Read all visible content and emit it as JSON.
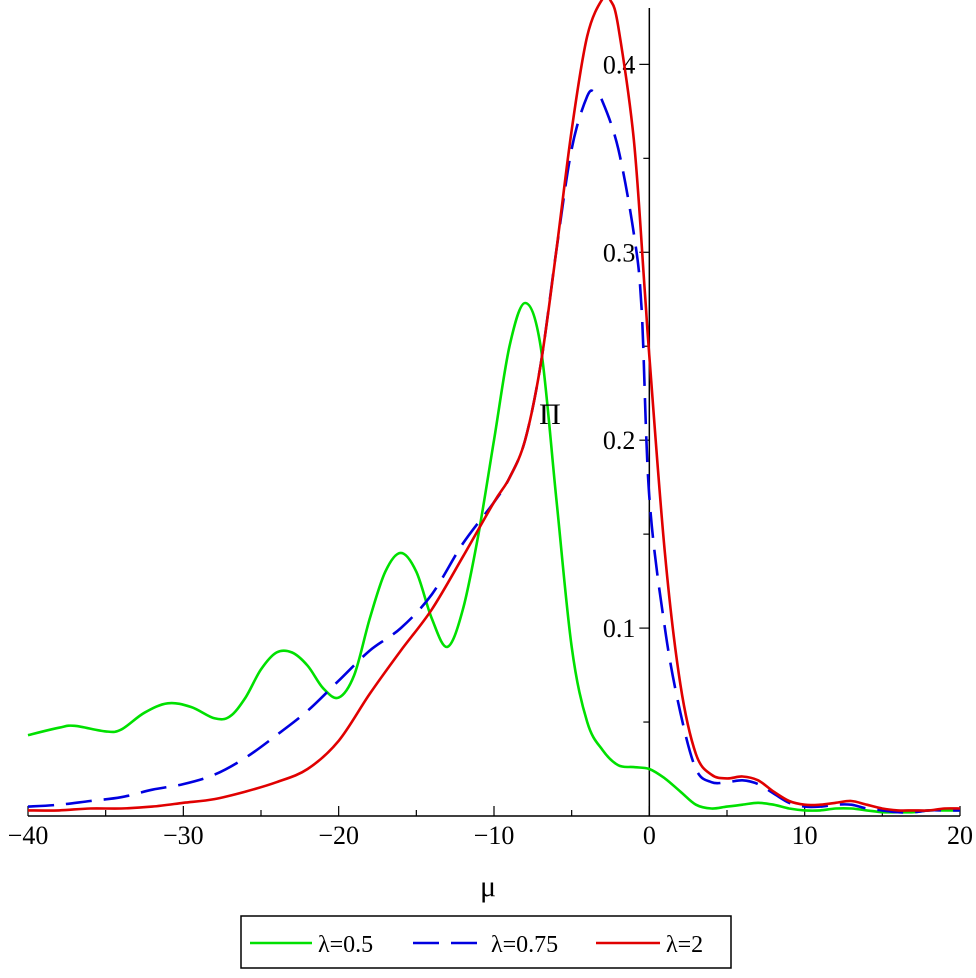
{
  "chart_data": {
    "type": "line",
    "title": "",
    "xlabel": "μ",
    "ylabel": "Π",
    "xlim": [
      -40,
      20
    ],
    "ylim": [
      0,
      0.43
    ],
    "xticks": [
      -40,
      -30,
      -20,
      -10,
      0,
      10,
      20
    ],
    "xtick_labels": [
      "−40",
      "−30",
      "−20",
      "−10",
      "0",
      "10",
      "20"
    ],
    "yticks": [
      0.1,
      0.2,
      0.3,
      0.4
    ],
    "ytick_labels": [
      "0.1",
      "0.2",
      "0.3",
      "0.4"
    ],
    "grid": false,
    "legend_position": "bottom",
    "series": [
      {
        "name": "λ=0.5",
        "color": "#00e000",
        "dash": "solid",
        "points": [
          [
            -40,
            0.043
          ],
          [
            -38,
            0.047
          ],
          [
            -37,
            0.048
          ],
          [
            -35,
            0.045
          ],
          [
            -34,
            0.046
          ],
          [
            -32.5,
            0.055
          ],
          [
            -31,
            0.06
          ],
          [
            -29.5,
            0.058
          ],
          [
            -28,
            0.052
          ],
          [
            -27,
            0.053
          ],
          [
            -26,
            0.063
          ],
          [
            -25,
            0.078
          ],
          [
            -24,
            0.087
          ],
          [
            -23,
            0.087
          ],
          [
            -22,
            0.08
          ],
          [
            -21,
            0.068
          ],
          [
            -20,
            0.063
          ],
          [
            -19,
            0.075
          ],
          [
            -18,
            0.105
          ],
          [
            -17,
            0.13
          ],
          [
            -16,
            0.14
          ],
          [
            -15,
            0.13
          ],
          [
            -14,
            0.105
          ],
          [
            -13,
            0.09
          ],
          [
            -12,
            0.11
          ],
          [
            -11,
            0.15
          ],
          [
            -10,
            0.2
          ],
          [
            -9,
            0.25
          ],
          [
            -8,
            0.273
          ],
          [
            -7,
            0.25
          ],
          [
            -6,
            0.17
          ],
          [
            -5,
            0.09
          ],
          [
            -4,
            0.05
          ],
          [
            -3,
            0.035
          ],
          [
            -2,
            0.027
          ],
          [
            -1,
            0.026
          ],
          [
            0,
            0.025
          ],
          [
            1,
            0.02
          ],
          [
            2,
            0.013
          ],
          [
            3,
            0.006
          ],
          [
            4,
            0.004
          ],
          [
            5,
            0.005
          ],
          [
            6,
            0.006
          ],
          [
            7,
            0.007
          ],
          [
            8,
            0.006
          ],
          [
            9,
            0.004
          ],
          [
            10,
            0.003
          ],
          [
            11,
            0.003
          ],
          [
            12,
            0.004
          ],
          [
            13,
            0.004
          ],
          [
            14,
            0.003
          ],
          [
            15,
            0.002
          ],
          [
            16,
            0.002
          ],
          [
            17,
            0.002
          ],
          [
            18,
            0.003
          ],
          [
            19,
            0.003
          ],
          [
            20,
            0.003
          ]
        ]
      },
      {
        "name": "λ=0.75",
        "color": "#0000e0",
        "dash": "dashed",
        "points": [
          [
            -40,
            0.005
          ],
          [
            -38,
            0.006
          ],
          [
            -36,
            0.008
          ],
          [
            -34,
            0.01
          ],
          [
            -32,
            0.014
          ],
          [
            -30,
            0.017
          ],
          [
            -28,
            0.022
          ],
          [
            -26,
            0.031
          ],
          [
            -24,
            0.043
          ],
          [
            -22,
            0.056
          ],
          [
            -20,
            0.072
          ],
          [
            -18,
            0.088
          ],
          [
            -16,
            0.1
          ],
          [
            -14,
            0.118
          ],
          [
            -12,
            0.145
          ],
          [
            -10,
            0.167
          ],
          [
            -9,
            0.18
          ],
          [
            -8,
            0.2
          ],
          [
            -7,
            0.24
          ],
          [
            -6,
            0.3
          ],
          [
            -5,
            0.355
          ],
          [
            -4,
            0.383
          ],
          [
            -3.5,
            0.385
          ],
          [
            -3,
            0.38
          ],
          [
            -2,
            0.355
          ],
          [
            -1,
            0.31
          ],
          [
            -0.5,
            0.27
          ],
          [
            0,
            0.17
          ],
          [
            1,
            0.1
          ],
          [
            2,
            0.055
          ],
          [
            3,
            0.025
          ],
          [
            4,
            0.018
          ],
          [
            5,
            0.018
          ],
          [
            6,
            0.019
          ],
          [
            7,
            0.017
          ],
          [
            8,
            0.012
          ],
          [
            9,
            0.007
          ],
          [
            10,
            0.005
          ],
          [
            11,
            0.005
          ],
          [
            12,
            0.006
          ],
          [
            13,
            0.006
          ],
          [
            14,
            0.004
          ],
          [
            15,
            0.003
          ],
          [
            16,
            0.002
          ],
          [
            17,
            0.002
          ],
          [
            18,
            0.003
          ],
          [
            19,
            0.003
          ],
          [
            20,
            0.003
          ]
        ]
      },
      {
        "name": "λ=2",
        "color": "#e00000",
        "dash": "solid",
        "points": [
          [
            -40,
            0.003
          ],
          [
            -38,
            0.003
          ],
          [
            -36,
            0.004
          ],
          [
            -34,
            0.004
          ],
          [
            -32,
            0.005
          ],
          [
            -30,
            0.007
          ],
          [
            -28,
            0.009
          ],
          [
            -26,
            0.013
          ],
          [
            -24,
            0.018
          ],
          [
            -22,
            0.025
          ],
          [
            -20,
            0.04
          ],
          [
            -18,
            0.065
          ],
          [
            -16,
            0.088
          ],
          [
            -14,
            0.11
          ],
          [
            -12,
            0.138
          ],
          [
            -10,
            0.167
          ],
          [
            -9,
            0.18
          ],
          [
            -8,
            0.2
          ],
          [
            -7,
            0.24
          ],
          [
            -6,
            0.3
          ],
          [
            -5,
            0.365
          ],
          [
            -4,
            0.415
          ],
          [
            -3,
            0.435
          ],
          [
            -2.5,
            0.434
          ],
          [
            -2,
            0.42
          ],
          [
            -1,
            0.36
          ],
          [
            -0.3,
            0.28
          ],
          [
            0,
            0.245
          ],
          [
            1,
            0.14
          ],
          [
            2,
            0.07
          ],
          [
            3,
            0.033
          ],
          [
            4,
            0.022
          ],
          [
            5,
            0.02
          ],
          [
            6,
            0.021
          ],
          [
            7,
            0.019
          ],
          [
            8,
            0.013
          ],
          [
            9,
            0.008
          ],
          [
            10,
            0.006
          ],
          [
            11,
            0.006
          ],
          [
            12,
            0.007
          ],
          [
            13,
            0.008
          ],
          [
            14,
            0.006
          ],
          [
            15,
            0.004
          ],
          [
            16,
            0.003
          ],
          [
            17,
            0.003
          ],
          [
            18,
            0.003
          ],
          [
            19,
            0.004
          ],
          [
            20,
            0.004
          ]
        ]
      }
    ]
  }
}
